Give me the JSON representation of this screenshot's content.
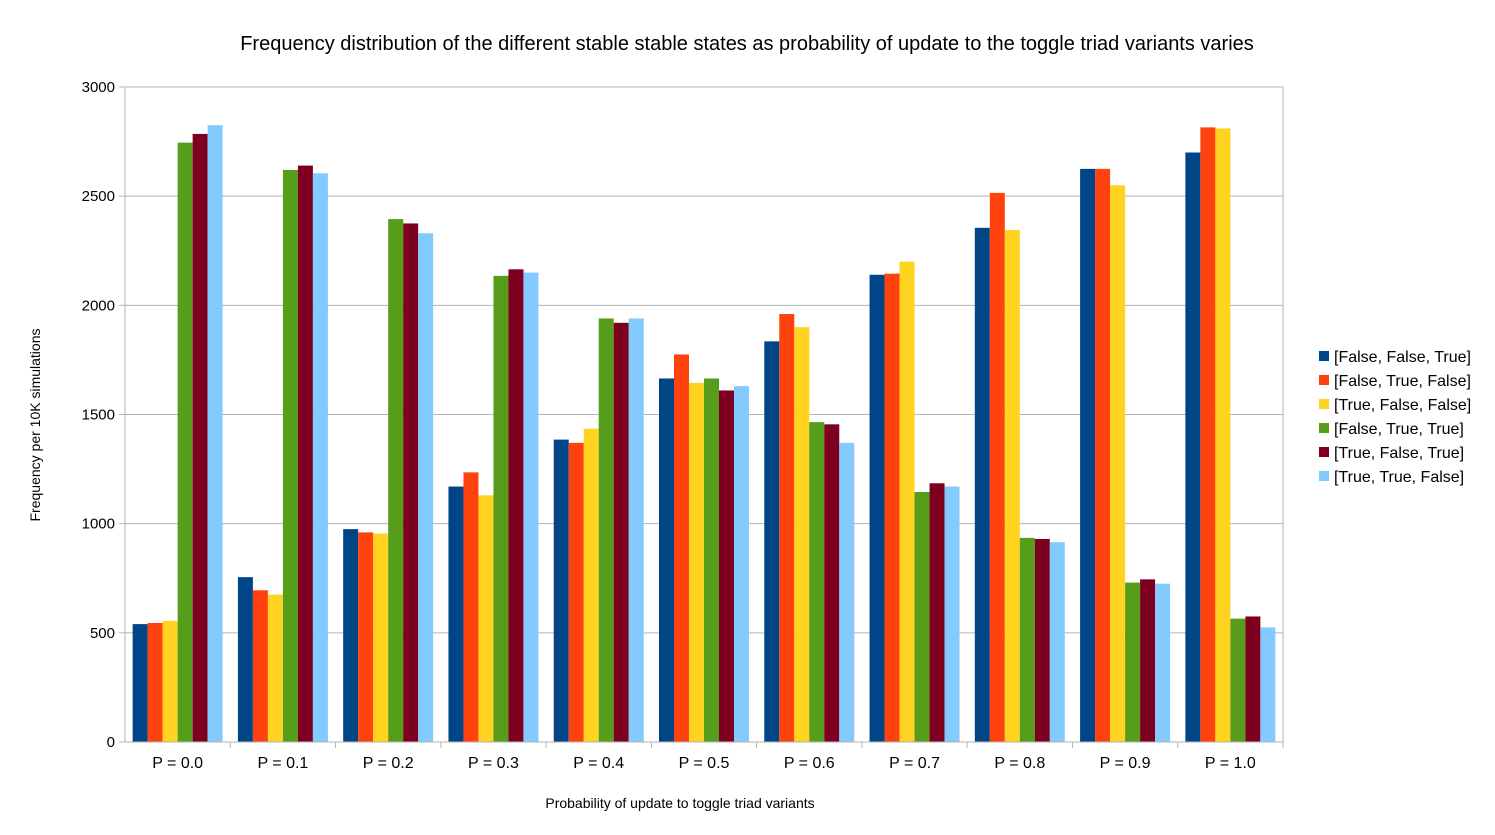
{
  "chart_data": {
    "type": "bar",
    "title": "Frequency distribution of the different stable stable states as probability of update to the toggle triad variants varies",
    "xlabel": "Probability of update to toggle triad variants",
    "ylabel": "Frequency per 10K simulations",
    "ylim": [
      0,
      3000
    ],
    "yticks": [
      0,
      500,
      1000,
      1500,
      2000,
      2500,
      3000
    ],
    "grid": true,
    "legend_position": "right",
    "categories": [
      "P = 0.0",
      "P = 0.1",
      "P = 0.2",
      "P = 0.3",
      "P = 0.4",
      "P = 0.5",
      "P = 0.6",
      "P = 0.7",
      "P = 0.8",
      "P = 0.9",
      "P = 1.0"
    ],
    "series": [
      {
        "name": "[False, False, True]",
        "color": "#004586",
        "values": [
          540,
          755,
          975,
          1170,
          1385,
          1665,
          1835,
          2140,
          2355,
          2625,
          2700
        ]
      },
      {
        "name": "[False, True, False]",
        "color": "#ff420e",
        "values": [
          545,
          695,
          960,
          1235,
          1370,
          1775,
          1960,
          2145,
          2515,
          2625,
          2815
        ]
      },
      {
        "name": "[True, False, False]",
        "color": "#ffd320",
        "values": [
          555,
          675,
          955,
          1130,
          1435,
          1645,
          1900,
          2200,
          2345,
          2550,
          2810
        ]
      },
      {
        "name": "[False, True, True]",
        "color": "#579d1c",
        "values": [
          2745,
          2620,
          2395,
          2135,
          1940,
          1665,
          1465,
          1145,
          935,
          730,
          565
        ]
      },
      {
        "name": "[True, False, True]",
        "color": "#7e0021",
        "values": [
          2785,
          2640,
          2375,
          2165,
          1920,
          1610,
          1455,
          1185,
          930,
          745,
          575
        ]
      },
      {
        "name": "[True, True, False]",
        "color": "#83caff",
        "values": [
          2825,
          2605,
          2330,
          2150,
          1940,
          1630,
          1370,
          1170,
          915,
          725,
          525
        ]
      }
    ]
  }
}
